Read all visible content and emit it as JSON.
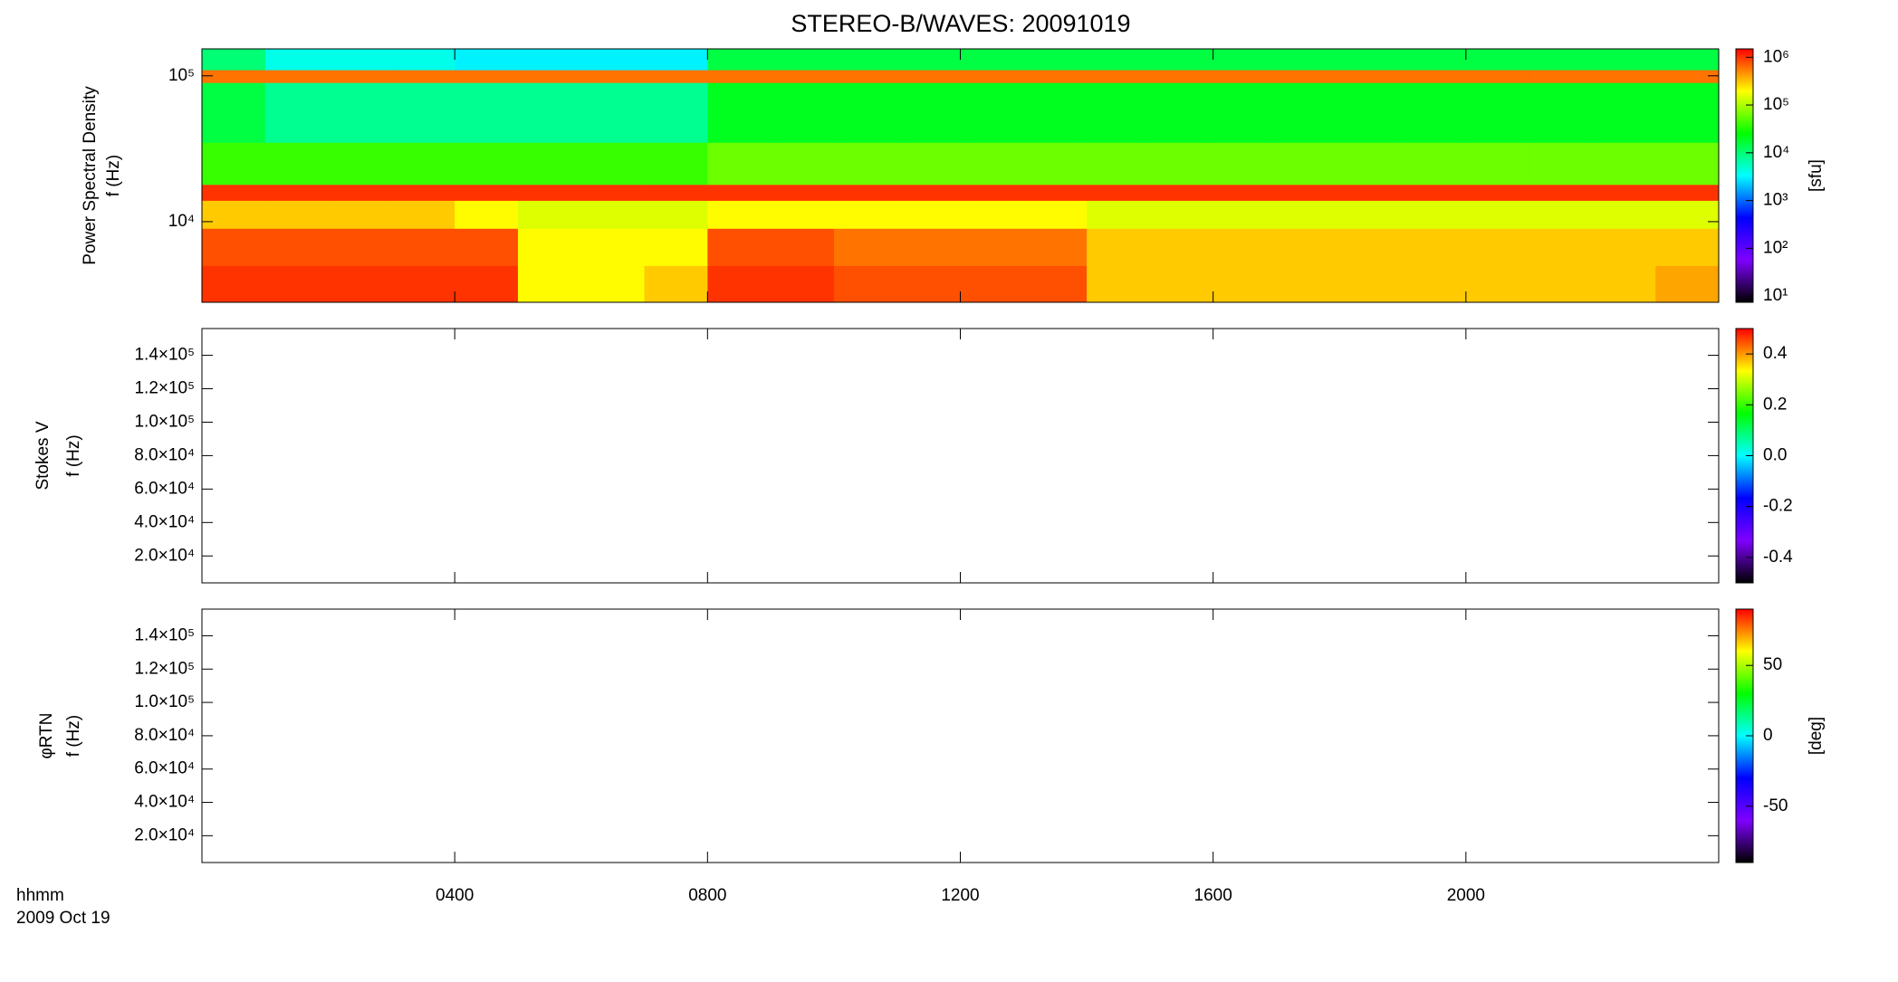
{
  "chart_data": [
    {
      "type": "heatmap",
      "title": "STEREO-B/WAVES: 20091019",
      "ylabel": [
        "Power Spectral Density",
        "f (Hz)"
      ],
      "colorbar_label": "[sfu]",
      "ylog": true,
      "ylim": [
        2800,
        153000
      ],
      "yticks": [
        {
          "value": 10000,
          "label": "10⁴"
        },
        {
          "value": 100000,
          "label": "10⁵"
        }
      ],
      "x": [
        0,
        1,
        2,
        3,
        4,
        5,
        6,
        7,
        8,
        9,
        10,
        11,
        12,
        13,
        14,
        15,
        16,
        17,
        18,
        19,
        20,
        21,
        22,
        23,
        24
      ],
      "y": [
        2800,
        5000,
        9000,
        14000,
        18000,
        35000,
        90000,
        110000,
        153000
      ],
      "z": [
        [
          1000000,
          1000000,
          1000000,
          1000000,
          1000000,
          200000,
          200000,
          300000,
          1000000,
          1000000,
          800000,
          800000,
          800000,
          800000,
          300000,
          300000,
          300000,
          300000,
          300000,
          300000,
          300000,
          300000,
          300000,
          400000
        ],
        [
          800000,
          800000,
          800000,
          800000,
          800000,
          200000,
          200000,
          200000,
          800000,
          800000,
          600000,
          600000,
          600000,
          600000,
          300000,
          300000,
          300000,
          300000,
          300000,
          300000,
          300000,
          300000,
          300000,
          300000
        ],
        [
          300000,
          300000,
          300000,
          300000,
          200000,
          150000,
          150000,
          150000,
          200000,
          200000,
          200000,
          200000,
          200000,
          200000,
          150000,
          150000,
          150000,
          150000,
          150000,
          150000,
          150000,
          150000,
          150000,
          150000
        ],
        [
          1000000,
          1000000,
          1000000,
          1000000,
          1000000,
          1000000,
          1000000,
          1000000,
          1000000,
          1000000,
          1000000,
          1000000,
          1000000,
          1000000,
          1000000,
          1000000,
          1000000,
          1000000,
          1000000,
          1000000,
          1000000,
          1000000,
          1000000,
          1000000
        ],
        [
          40000,
          40000,
          40000,
          40000,
          40000,
          40000,
          40000,
          40000,
          60000,
          60000,
          60000,
          60000,
          60000,
          60000,
          60000,
          60000,
          60000,
          60000,
          60000,
          60000,
          60000,
          60000,
          60000,
          60000
        ],
        [
          15000,
          8000,
          8000,
          8000,
          8000,
          8000,
          8000,
          8000,
          20000,
          20000,
          20000,
          20000,
          20000,
          20000,
          20000,
          20000,
          20000,
          20000,
          20000,
          20000,
          20000,
          20000,
          20000,
          20000
        ],
        [
          600000,
          600000,
          600000,
          600000,
          600000,
          600000,
          600000,
          600000,
          600000,
          600000,
          600000,
          600000,
          600000,
          600000,
          600000,
          600000,
          600000,
          600000,
          600000,
          600000,
          600000,
          600000,
          600000,
          600000
        ],
        [
          10000,
          4000,
          4000,
          4000,
          3000,
          3000,
          3000,
          3000,
          15000,
          15000,
          15000,
          15000,
          15000,
          15000,
          15000,
          15000,
          15000,
          15000,
          15000,
          15000,
          15000,
          15000,
          15000,
          15000
        ]
      ],
      "clog": true,
      "clim": [
        7.4,
        1500000
      ],
      "cticks": [
        {
          "value": 10,
          "label": "10¹"
        },
        {
          "value": 100,
          "label": "10²"
        },
        {
          "value": 1000,
          "label": "10³"
        },
        {
          "value": 10000,
          "label": "10⁴"
        },
        {
          "value": 100000,
          "label": "10⁵"
        },
        {
          "value": 1000000,
          "label": "10⁶"
        }
      ],
      "colormap": [
        "#000000",
        "#7f00ff",
        "#0000ff",
        "#00ffff",
        "#00ff00",
        "#ffff00",
        "#ff0000"
      ]
    },
    {
      "type": "heatmap",
      "ylabel": [
        "Stokes V",
        "f (Hz)"
      ],
      "ylog": false,
      "ylim": [
        3900,
        156000
      ],
      "yticks": [
        {
          "value": 20000,
          "label": "2.0×10⁴"
        },
        {
          "value": 40000,
          "label": "4.0×10⁴"
        },
        {
          "value": 60000,
          "label": "6.0×10⁴"
        },
        {
          "value": 80000,
          "label": "8.0×10⁴"
        },
        {
          "value": 100000,
          "label": "1.0×10⁵"
        },
        {
          "value": 120000,
          "label": "1.2×10⁵"
        },
        {
          "value": 140000,
          "label": "1.4×10⁵"
        }
      ],
      "clog": false,
      "clim": [
        -0.5,
        0.5
      ],
      "cticks": [
        -0.4,
        -0.2,
        {
          "value": 0,
          "label": "0.0"
        },
        0.2,
        0.4
      ],
      "colormap": [
        "#000000",
        "#7f00ff",
        "#0000ff",
        "#00ffff",
        "#00ff00",
        "#ffff00",
        "#ff0000"
      ]
    },
    {
      "type": "heatmap",
      "ylabel": [
        "φRTN",
        "f (Hz)"
      ],
      "colorbar_label": "[deg]",
      "ylog": false,
      "ylim": [
        3900,
        156000
      ],
      "yticks": [
        {
          "value": 20000,
          "label": "2.0×10⁴"
        },
        {
          "value": 40000,
          "label": "4.0×10⁴"
        },
        {
          "value": 60000,
          "label": "6.0×10⁴"
        },
        {
          "value": 80000,
          "label": "8.0×10⁴"
        },
        {
          "value": 100000,
          "label": "1.0×10⁵"
        },
        {
          "value": 120000,
          "label": "1.2×10⁵"
        },
        {
          "value": 140000,
          "label": "1.4×10⁵"
        }
      ],
      "clog": false,
      "clim": [
        -90,
        90
      ],
      "cticks": [
        -50,
        0,
        50
      ],
      "colormap": [
        "#000000",
        "#7f00ff",
        "#0000ff",
        "#00ffff",
        "#00ff00",
        "#ffff00",
        "#ff0000"
      ],
      "xlabel": "hhmm",
      "date": "2009 Oct 19",
      "xlim": [
        0,
        24
      ],
      "xticks": [
        {
          "value": 4,
          "label": "0400"
        },
        {
          "value": 8,
          "label": "0800"
        },
        {
          "value": 12,
          "label": "1200"
        },
        {
          "value": 16,
          "label": "1600"
        },
        {
          "value": 20,
          "label": "2000"
        }
      ]
    }
  ]
}
